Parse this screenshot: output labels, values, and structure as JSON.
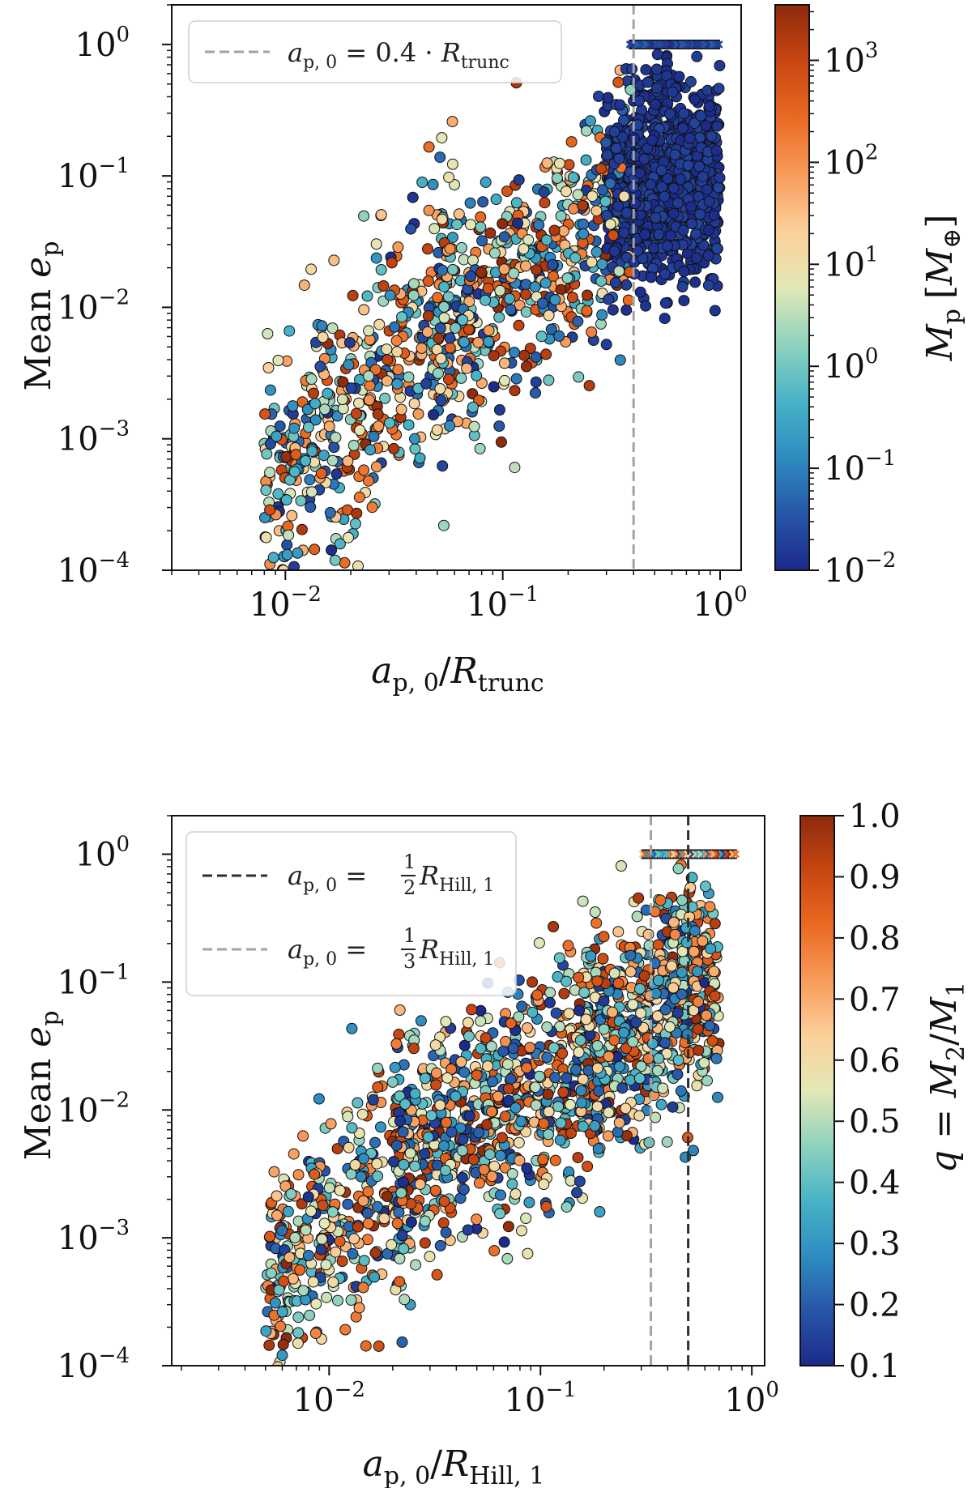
{
  "chart_data": [
    {
      "type": "scatter",
      "id": "top",
      "xscale": "log",
      "yscale": "log",
      "xlim": [
        0.003,
        1.25
      ],
      "ylim": [
        0.0001,
        2.0
      ],
      "xticks": [
        0.01,
        0.1,
        1.0
      ],
      "yticks": [
        0.0001,
        0.001,
        0.01,
        0.1,
        1.0
      ],
      "xtick_labels": [
        {
          "base": "10",
          "exp": "−2"
        },
        {
          "base": "10",
          "exp": "−1"
        },
        {
          "base": "10",
          "exp": "0"
        }
      ],
      "ytick_labels": [
        {
          "base": "10",
          "exp": "−4"
        },
        {
          "base": "10",
          "exp": "−3"
        },
        {
          "base": "10",
          "exp": "−2"
        },
        {
          "base": "10",
          "exp": "−1"
        },
        {
          "base": "10",
          "exp": "0"
        }
      ],
      "xlabel": {
        "a": "a",
        "sub_a": "p, 0",
        "slash": "/",
        "R": "R",
        "sub_R": "trunc"
      },
      "ylabel": {
        "text": "Mean ",
        "e": "e",
        "sub": "p"
      },
      "vlines": [
        {
          "x": 0.4,
          "color": "#a3a3a3",
          "style": "dashed"
        }
      ],
      "legend": {
        "position": "upper-left",
        "entries": [
          {
            "color": "#a3a3a3",
            "lhs": "a",
            "lhs_sub": "p, 0",
            "eq": " = 0.4 · ",
            "R": "R",
            "R_sub": "trunc"
          }
        ]
      },
      "colorbar": {
        "scale": "log",
        "range": [
          0.01,
          3500
        ],
        "ticks": [
          0.01,
          0.1,
          1,
          10,
          100,
          1000
        ],
        "tick_labels": [
          {
            "base": "10",
            "exp": "−2"
          },
          {
            "base": "10",
            "exp": "−1"
          },
          {
            "base": "10",
            "exp": "0"
          },
          {
            "base": "10",
            "exp": "1"
          },
          {
            "base": "10",
            "exp": "2"
          },
          {
            "base": "10",
            "exp": "3"
          }
        ],
        "label": {
          "M": "M",
          "sub": "p",
          "unit_open": "[",
          "unit": "M",
          "unit_sub": "⊕",
          "unit_close": "]"
        }
      },
      "clusters": [
        {
          "x_range": [
            0.3,
            1.0
          ],
          "y_center": 0.08,
          "y_spread": 0.8,
          "count": 900,
          "color_range": [
            0.0,
            0.06
          ],
          "slope": 0.3
        },
        {
          "x_range": [
            0.05,
            0.4
          ],
          "y_center": 0.02,
          "y_spread": 1.0,
          "count": 500,
          "color_range": [
            0.0,
            1.0
          ],
          "slope": 1.1
        },
        {
          "x_range": [
            0.008,
            0.06
          ],
          "y_center": 0.002,
          "y_spread": 1.1,
          "count": 450,
          "color_range": [
            0.0,
            1.0
          ],
          "slope": 1.6
        },
        {
          "x_range": [
            0.4,
            0.65
          ],
          "y_center": 0.45,
          "y_spread": 0.4,
          "count": 40,
          "color_range": [
            0.0,
            0.05
          ],
          "slope": 0.0
        }
      ],
      "capped_markers": {
        "y": 1.0,
        "x_range": [
          0.38,
          1.0
        ],
        "count": 40,
        "color_range": [
          0.0,
          0.12
        ],
        "marker": "x"
      }
    },
    {
      "type": "scatter",
      "id": "bottom",
      "xscale": "log",
      "yscale": "log",
      "xlim": [
        0.0018,
        1.15
      ],
      "ylim": [
        0.0001,
        2.0
      ],
      "xticks": [
        0.01,
        0.1,
        1.0
      ],
      "yticks": [
        0.0001,
        0.001,
        0.01,
        0.1,
        1.0
      ],
      "xtick_labels": [
        {
          "base": "10",
          "exp": "−2"
        },
        {
          "base": "10",
          "exp": "−1"
        },
        {
          "base": "10",
          "exp": "0"
        }
      ],
      "ytick_labels": [
        {
          "base": "10",
          "exp": "−4"
        },
        {
          "base": "10",
          "exp": "−3"
        },
        {
          "base": "10",
          "exp": "−2"
        },
        {
          "base": "10",
          "exp": "−1"
        },
        {
          "base": "10",
          "exp": "0"
        }
      ],
      "xlabel": {
        "a": "a",
        "sub_a": "p, 0",
        "slash": "/",
        "R": "R",
        "sub_R": "Hill, 1"
      },
      "ylabel": {
        "text": "Mean ",
        "e": "e",
        "sub": "p"
      },
      "vlines": [
        {
          "x": 0.5,
          "color": "#2e2e2e",
          "style": "dashed"
        },
        {
          "x": 0.333,
          "color": "#a3a3a3",
          "style": "dashed"
        }
      ],
      "legend": {
        "position": "upper-left",
        "entries": [
          {
            "color": "#2e2e2e",
            "lhs": "a",
            "lhs_sub": "p, 0",
            "eq": " = ",
            "num": "1",
            "den": "2",
            "R": "R",
            "R_sub": "Hill, 1"
          },
          {
            "color": "#a3a3a3",
            "lhs": "a",
            "lhs_sub": "p, 0",
            "eq": " = ",
            "num": "1",
            "den": "3",
            "R": "R",
            "R_sub": "Hill, 1"
          }
        ]
      },
      "colorbar": {
        "scale": "linear",
        "range": [
          0.1,
          1.0
        ],
        "ticks": [
          0.1,
          0.2,
          0.3,
          0.4,
          0.5,
          0.6,
          0.7,
          0.8,
          0.9,
          1.0
        ],
        "tick_labels_text": [
          "0.1",
          "0.2",
          "0.3",
          "0.4",
          "0.5",
          "0.6",
          "0.7",
          "0.8",
          "0.9",
          "1.0"
        ],
        "label": {
          "q": "q",
          "eq": " = ",
          "M2": "M",
          "sub2": "2",
          "slash": "/",
          "M1": "M",
          "sub1": "1"
        }
      },
      "clusters": [
        {
          "x_range": [
            0.15,
            0.7
          ],
          "y_center": 0.05,
          "y_spread": 0.9,
          "count": 650,
          "color_range": [
            0.0,
            1.0
          ],
          "slope": 1.0
        },
        {
          "x_range": [
            0.02,
            0.2
          ],
          "y_center": 0.01,
          "y_spread": 1.0,
          "count": 700,
          "color_range": [
            0.0,
            1.0
          ],
          "slope": 1.0
        },
        {
          "x_range": [
            0.005,
            0.025
          ],
          "y_center": 0.0015,
          "y_spread": 1.0,
          "count": 350,
          "color_range": [
            0.0,
            1.0
          ],
          "slope": 1.6
        },
        {
          "x_range": [
            0.38,
            0.55
          ],
          "y_center": 0.3,
          "y_spread": 0.35,
          "count": 30,
          "color_range": [
            0.0,
            1.0
          ],
          "slope": 0.0
        }
      ],
      "capped_markers": {
        "y": 1.0,
        "x_range": [
          0.3,
          0.85
        ],
        "count": 36,
        "color_range": [
          0.0,
          1.0
        ],
        "marker": "x"
      }
    }
  ],
  "colormap": [
    "#1c2a8a",
    "#2756a8",
    "#2f8cc0",
    "#47b3c6",
    "#8fd2bf",
    "#e3e8b6",
    "#fbd09a",
    "#f89b5b",
    "#ea6a22",
    "#c84612",
    "#8e2a0c"
  ]
}
